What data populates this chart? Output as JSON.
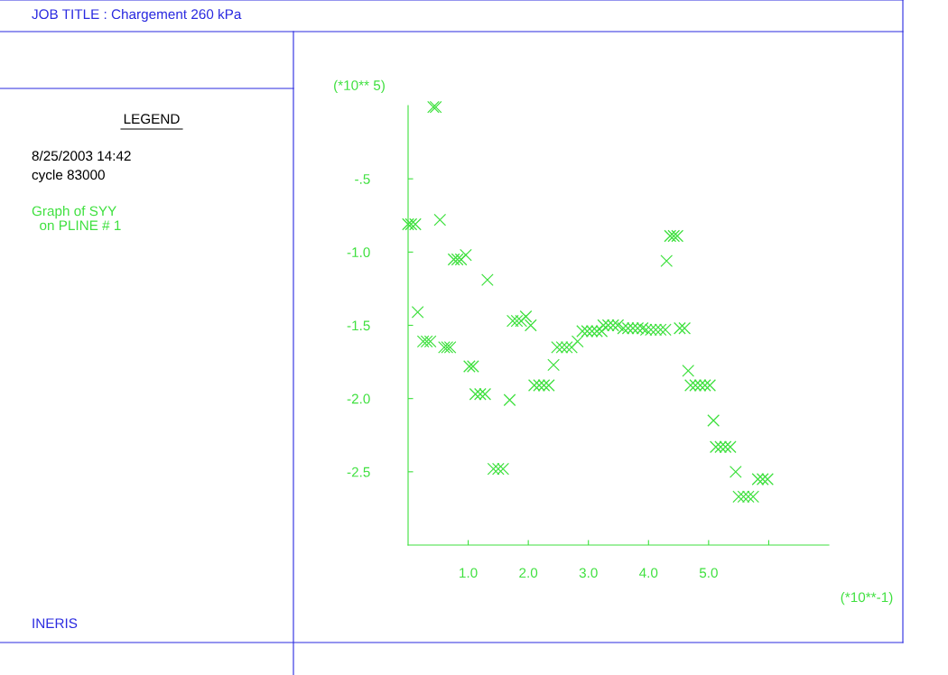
{
  "chart_data": {
    "type": "scatter",
    "title": "JOB TITLE : Chargement 260 kPa",
    "xlabel": "(*10**-1)",
    "ylabel": "(*10** 5)",
    "annotations": [
      "LEGEND",
      "8/25/2003 14:42",
      "cycle 83000",
      "INERIS"
    ],
    "xlim": [
      0,
      7
    ],
    "ylim": [
      -3,
      0
    ],
    "xticks": [
      {
        "value": 1,
        "label": "1.0"
      },
      {
        "value": 2,
        "label": "2.0"
      },
      {
        "value": 3,
        "label": "3.0"
      },
      {
        "value": 4,
        "label": "4.0"
      },
      {
        "value": 5,
        "label": "5.0"
      },
      {
        "value": 6,
        "label": null
      }
    ],
    "yticks": [
      {
        "value": -0.5,
        "label": "-.5"
      },
      {
        "value": -1.0,
        "label": "-1.0"
      },
      {
        "value": -1.5,
        "label": "-1.5"
      },
      {
        "value": -2.0,
        "label": "-2.0"
      },
      {
        "value": -2.5,
        "label": "-2.5"
      }
    ],
    "grid": false,
    "legend": "left",
    "marker": "cross",
    "series": [
      {
        "name": "Graph of SYY\n  on PLINE # 1",
        "color": "#3ee03e",
        "x": [
          0.0,
          0.05,
          0.12,
          0.42,
          0.46,
          0.53,
          0.16,
          0.25,
          0.31,
          0.37,
          0.6,
          0.65,
          0.7,
          0.76,
          0.82,
          0.88,
          0.96,
          1.32,
          1.02,
          1.08,
          1.12,
          1.2,
          1.28,
          1.42,
          1.5,
          1.58,
          1.69,
          1.74,
          1.81,
          1.88,
          1.96,
          2.04,
          2.1,
          2.18,
          2.26,
          2.34,
          2.42,
          2.48,
          2.56,
          2.64,
          2.72,
          2.82,
          2.9,
          2.98,
          3.06,
          3.14,
          3.22,
          3.25,
          3.33,
          3.41,
          3.49,
          3.58,
          3.66,
          3.74,
          3.82,
          3.9,
          3.96,
          4.04,
          4.12,
          4.2,
          4.28,
          4.52,
          4.6,
          4.36,
          4.42,
          4.48,
          4.3,
          4.66,
          4.7,
          4.78,
          4.86,
          4.94,
          5.02,
          5.08,
          5.12,
          5.2,
          5.28,
          5.36,
          5.45,
          5.5,
          5.58,
          5.66,
          5.74,
          5.82,
          5.9,
          5.98
        ],
        "values": [
          -0.81,
          -0.81,
          -0.81,
          -0.01,
          -0.01,
          -0.78,
          -1.41,
          -1.61,
          -1.61,
          -1.61,
          -1.65,
          -1.65,
          -1.65,
          -1.05,
          -1.05,
          -1.05,
          -1.02,
          -1.19,
          -1.78,
          -1.78,
          -1.97,
          -1.97,
          -1.97,
          -2.48,
          -2.48,
          -2.48,
          -2.01,
          -1.47,
          -1.47,
          -1.47,
          -1.44,
          -1.5,
          -1.91,
          -1.91,
          -1.91,
          -1.91,
          -1.77,
          -1.65,
          -1.65,
          -1.65,
          -1.65,
          -1.61,
          -1.54,
          -1.54,
          -1.54,
          -1.54,
          -1.54,
          -1.5,
          -1.5,
          -1.5,
          -1.5,
          -1.52,
          -1.52,
          -1.52,
          -1.52,
          -1.52,
          -1.53,
          -1.53,
          -1.53,
          -1.53,
          -1.53,
          -1.52,
          -1.52,
          -0.89,
          -0.89,
          -0.89,
          -1.06,
          -1.81,
          -1.91,
          -1.91,
          -1.91,
          -1.91,
          -1.91,
          -2.15,
          -2.33,
          -2.33,
          -2.33,
          -2.33,
          -2.5,
          -2.67,
          -2.67,
          -2.67,
          -2.67,
          -2.55,
          -2.55,
          -2.55
        ]
      }
    ]
  }
}
